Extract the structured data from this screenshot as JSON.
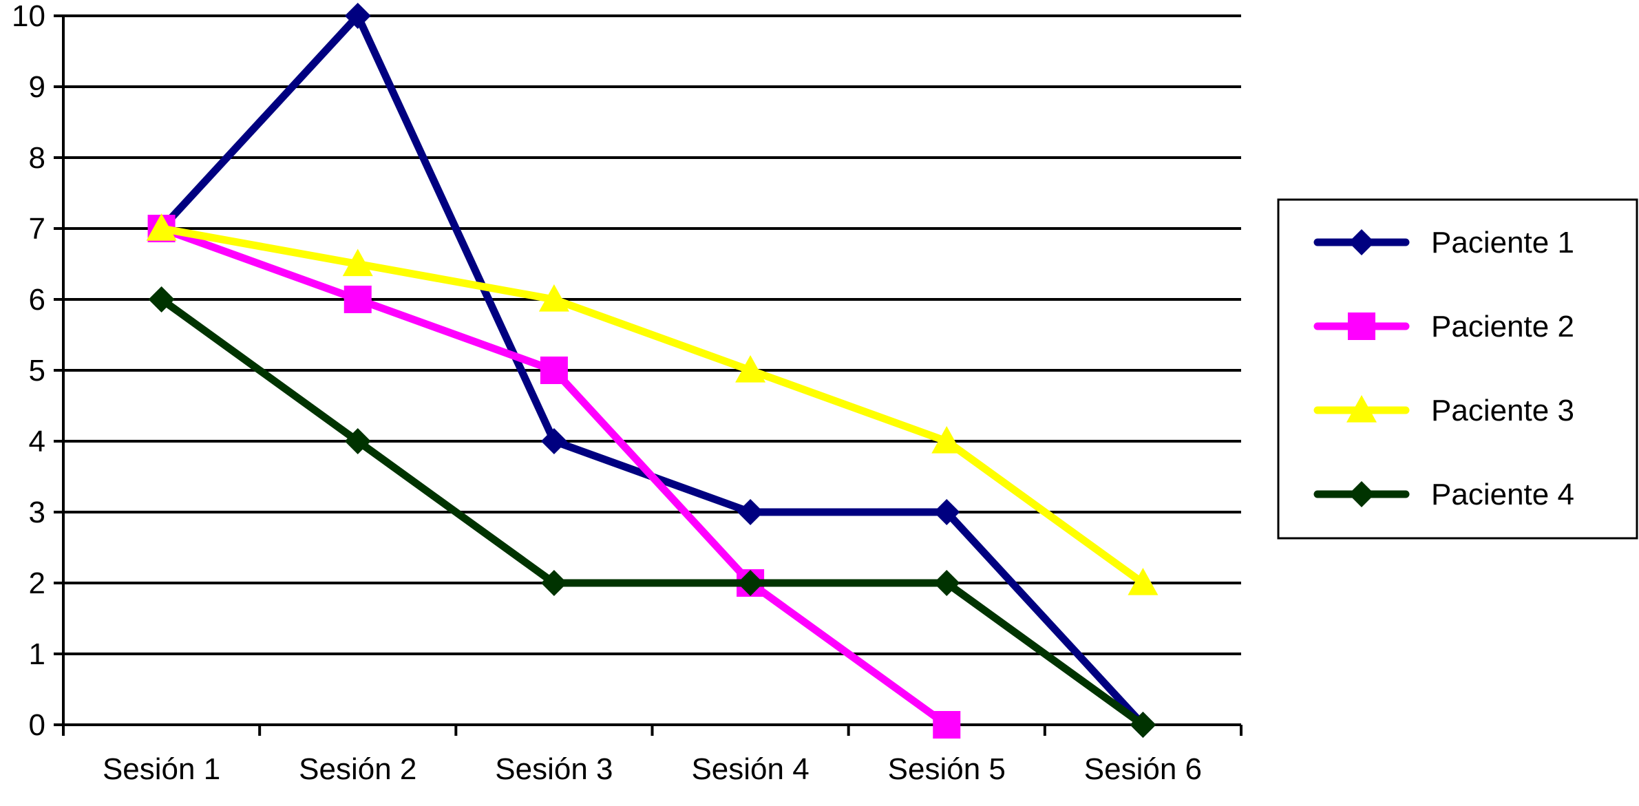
{
  "chart_data": {
    "type": "line",
    "title": "",
    "xlabel": "",
    "ylabel": "",
    "categories": [
      "Sesión 1",
      "Sesión 2",
      "Sesión 3",
      "Sesión 4",
      "Sesión 5",
      "Sesión 6"
    ],
    "ylim": [
      0,
      10
    ],
    "yticks": [
      "0",
      "1",
      "2",
      "3",
      "4",
      "5",
      "6",
      "7",
      "8",
      "9",
      "10"
    ],
    "grid": "horizontal",
    "legend_position": "right",
    "series": [
      {
        "name": "Paciente 1",
        "color": "#000080",
        "marker": "diamond",
        "values": [
          7,
          10,
          4,
          3,
          3,
          0
        ]
      },
      {
        "name": "Paciente 2",
        "color": "#ff00ff",
        "marker": "square",
        "values": [
          7,
          6,
          5,
          2,
          0,
          null
        ]
      },
      {
        "name": "Paciente 3",
        "color": "#ffff00",
        "marker": "triangle",
        "values": [
          7,
          6.5,
          6,
          5,
          4,
          2
        ]
      },
      {
        "name": "Paciente 4",
        "color": "#003300",
        "marker": "diamond",
        "values": [
          6,
          4,
          2,
          2,
          2,
          0
        ]
      }
    ]
  }
}
